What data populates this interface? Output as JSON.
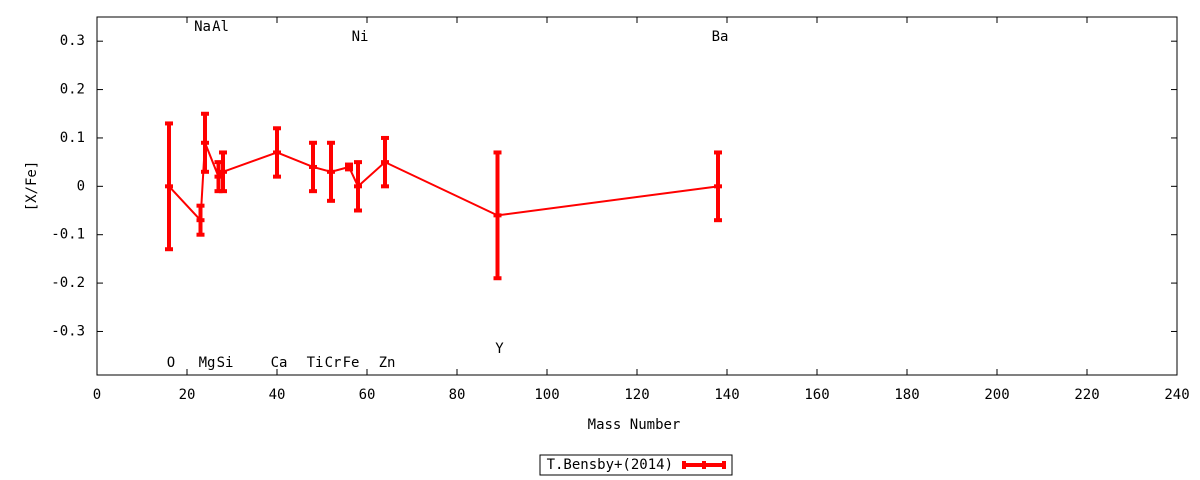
{
  "chart_data": {
    "type": "errorbar",
    "x_label": "Mass Number",
    "y_label": "[X/Fe]",
    "xlim": [
      0,
      240
    ],
    "xticks": [
      0,
      20,
      40,
      60,
      80,
      100,
      120,
      140,
      160,
      180,
      200,
      220,
      240
    ],
    "ylim": [
      -0.39,
      0.35
    ],
    "yticks": [
      -0.3,
      -0.2,
      -0.1,
      0,
      0.1,
      0.2,
      0.3
    ],
    "grid": false,
    "legend": "bottom",
    "series": [
      {
        "name": "T.Bensby+(2014)",
        "color": "#ff0000",
        "x": [
          16,
          23,
          24,
          27,
          28,
          40,
          48,
          52,
          56,
          58,
          64,
          89,
          138
        ],
        "values": [
          0,
          -0.07,
          0.09,
          0.02,
          0.03,
          0.07,
          0.04,
          0.03,
          0.04,
          0,
          0.05,
          -0.06,
          0
        ],
        "errors": [
          0.13,
          0.03,
          0.06,
          0.03,
          0.04,
          0.05,
          0.05,
          0.06,
          0.005,
          0.05,
          0.05,
          0.13,
          0.07
        ],
        "point_labels": [
          "O",
          "Na",
          "Mg",
          "Al",
          "Si",
          "Ca",
          "Ti",
          "Cr",
          "Fe",
          "Ni",
          "Zn",
          "Y",
          "Ba"
        ]
      }
    ]
  }
}
